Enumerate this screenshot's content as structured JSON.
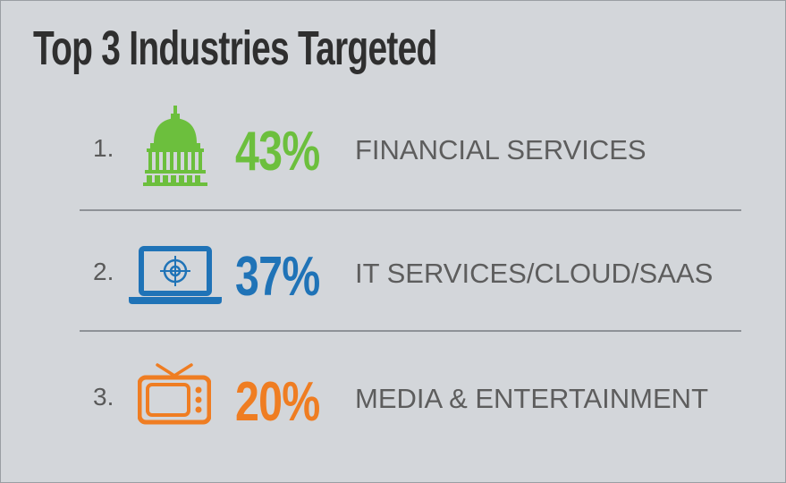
{
  "title": "Top 3 Industries Targeted",
  "colors": {
    "background": "#d3d6da",
    "green": "#6cbf3d",
    "blue": "#1f73b7",
    "orange": "#ef7d22"
  },
  "items": [
    {
      "rank": "1.",
      "percent": "43%",
      "label": "FINANCIAL SERVICES",
      "icon": "capitol-building-icon",
      "color": "#6cbf3d"
    },
    {
      "rank": "2.",
      "percent": "37%",
      "label": "IT SERVICES/CLOUD/SAAS",
      "icon": "laptop-target-icon",
      "color": "#1f73b7"
    },
    {
      "rank": "3.",
      "percent": "20%",
      "label": "MEDIA & ENTERTAINMENT",
      "icon": "television-icon",
      "color": "#ef7d22"
    }
  ]
}
